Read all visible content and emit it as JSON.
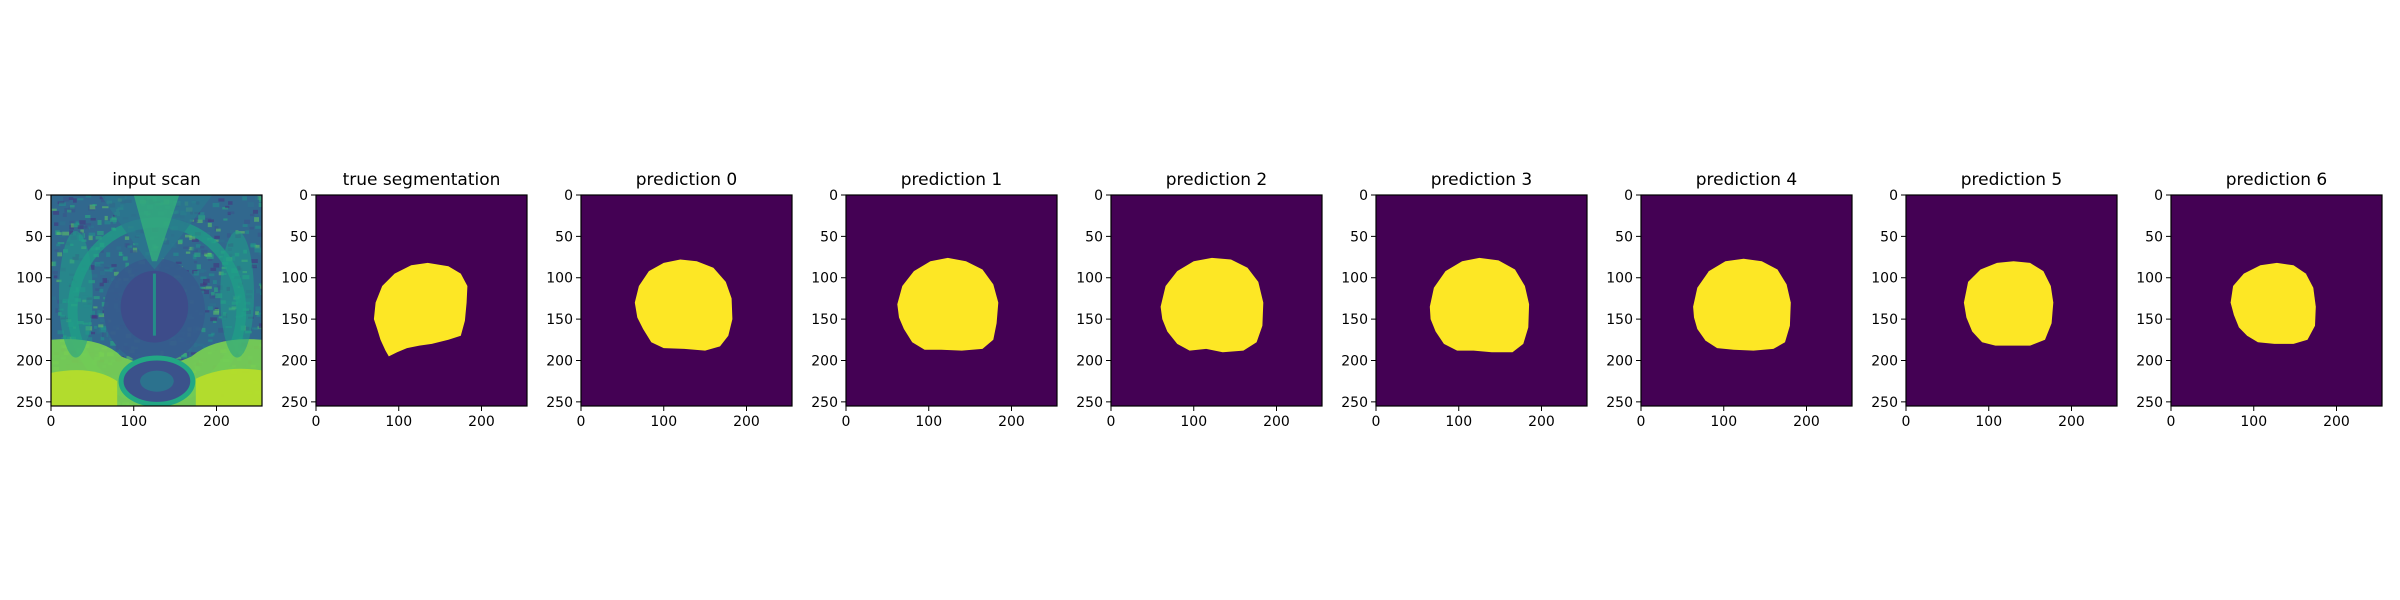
{
  "chart_data": {
    "type": "heatmap",
    "colormap": "viridis",
    "mask_colors": {
      "background": "#440154",
      "foreground": "#fde725"
    },
    "grid": false,
    "panels": [
      {
        "title": "input scan",
        "kind": "mri-scan",
        "xlim": [
          0,
          255
        ],
        "ylim": [
          255,
          0
        ],
        "xticks": [
          0,
          100,
          200
        ],
        "yticks": [
          0,
          50,
          100,
          150,
          200,
          250
        ]
      },
      {
        "title": "true segmentation",
        "kind": "mask",
        "xlim": [
          0,
          255
        ],
        "ylim": [
          255,
          0
        ],
        "xticks": [
          0,
          100,
          200
        ],
        "yticks": [
          0,
          50,
          100,
          150,
          200,
          250
        ],
        "mask_outline": [
          [
            70,
            150
          ],
          [
            72,
            130
          ],
          [
            80,
            110
          ],
          [
            95,
            95
          ],
          [
            115,
            85
          ],
          [
            135,
            82
          ],
          [
            160,
            86
          ],
          [
            175,
            95
          ],
          [
            183,
            110
          ],
          [
            182,
            130
          ],
          [
            180,
            152
          ],
          [
            175,
            170
          ],
          [
            160,
            175
          ],
          [
            140,
            180
          ],
          [
            125,
            182
          ],
          [
            110,
            185
          ],
          [
            98,
            190
          ],
          [
            88,
            195
          ],
          [
            84,
            188
          ],
          [
            78,
            175
          ],
          [
            74,
            162
          ]
        ]
      },
      {
        "title": "prediction 0",
        "kind": "mask",
        "xlim": [
          0,
          255
        ],
        "ylim": [
          255,
          0
        ],
        "xticks": [
          0,
          100,
          200
        ],
        "yticks": [
          0,
          50,
          100,
          150,
          200,
          250
        ],
        "mask_outline": [
          [
            65,
            130
          ],
          [
            70,
            110
          ],
          [
            82,
            92
          ],
          [
            100,
            82
          ],
          [
            120,
            78
          ],
          [
            140,
            80
          ],
          [
            160,
            88
          ],
          [
            175,
            105
          ],
          [
            182,
            125
          ],
          [
            183,
            150
          ],
          [
            178,
            170
          ],
          [
            168,
            183
          ],
          [
            150,
            188
          ],
          [
            125,
            186
          ],
          [
            100,
            185
          ],
          [
            85,
            178
          ],
          [
            75,
            162
          ],
          [
            68,
            148
          ]
        ]
      },
      {
        "title": "prediction 1",
        "kind": "mask",
        "xlim": [
          0,
          255
        ],
        "ylim": [
          255,
          0
        ],
        "xticks": [
          0,
          100,
          200
        ],
        "yticks": [
          0,
          50,
          100,
          150,
          200,
          250
        ],
        "mask_outline": [
          [
            62,
            132
          ],
          [
            68,
            110
          ],
          [
            82,
            92
          ],
          [
            102,
            80
          ],
          [
            123,
            76
          ],
          [
            145,
            80
          ],
          [
            165,
            90
          ],
          [
            178,
            108
          ],
          [
            184,
            130
          ],
          [
            182,
            155
          ],
          [
            178,
            175
          ],
          [
            165,
            186
          ],
          [
            140,
            188
          ],
          [
            115,
            187
          ],
          [
            95,
            187
          ],
          [
            80,
            178
          ],
          [
            70,
            162
          ],
          [
            64,
            148
          ]
        ]
      },
      {
        "title": "prediction 2",
        "kind": "mask",
        "xlim": [
          0,
          255
        ],
        "ylim": [
          255,
          0
        ],
        "xticks": [
          0,
          100,
          200
        ],
        "yticks": [
          0,
          50,
          100,
          150,
          200,
          250
        ],
        "mask_outline": [
          [
            60,
            135
          ],
          [
            66,
            110
          ],
          [
            80,
            92
          ],
          [
            100,
            80
          ],
          [
            122,
            76
          ],
          [
            145,
            78
          ],
          [
            165,
            88
          ],
          [
            178,
            105
          ],
          [
            184,
            130
          ],
          [
            183,
            158
          ],
          [
            176,
            178
          ],
          [
            160,
            188
          ],
          [
            135,
            190
          ],
          [
            115,
            186
          ],
          [
            95,
            188
          ],
          [
            80,
            180
          ],
          [
            68,
            165
          ],
          [
            62,
            150
          ]
        ]
      },
      {
        "title": "prediction 3",
        "kind": "mask",
        "xlim": [
          0,
          255
        ],
        "ylim": [
          255,
          0
        ],
        "xticks": [
          0,
          100,
          200
        ],
        "yticks": [
          0,
          50,
          100,
          150,
          200,
          250
        ],
        "mask_outline": [
          [
            65,
            135
          ],
          [
            70,
            112
          ],
          [
            84,
            92
          ],
          [
            104,
            80
          ],
          [
            125,
            76
          ],
          [
            148,
            79
          ],
          [
            168,
            90
          ],
          [
            180,
            110
          ],
          [
            185,
            132
          ],
          [
            184,
            160
          ],
          [
            178,
            180
          ],
          [
            165,
            190
          ],
          [
            140,
            190
          ],
          [
            118,
            188
          ],
          [
            98,
            188
          ],
          [
            82,
            180
          ],
          [
            72,
            165
          ],
          [
            66,
            150
          ]
        ]
      },
      {
        "title": "prediction 4",
        "kind": "mask",
        "xlim": [
          0,
          255
        ],
        "ylim": [
          255,
          0
        ],
        "xticks": [
          0,
          100,
          200
        ],
        "yticks": [
          0,
          50,
          100,
          150,
          200,
          250
        ],
        "mask_outline": [
          [
            63,
            135
          ],
          [
            68,
            112
          ],
          [
            82,
            92
          ],
          [
            102,
            80
          ],
          [
            124,
            77
          ],
          [
            146,
            80
          ],
          [
            165,
            90
          ],
          [
            176,
            108
          ],
          [
            181,
            130
          ],
          [
            180,
            158
          ],
          [
            174,
            178
          ],
          [
            160,
            186
          ],
          [
            136,
            188
          ],
          [
            112,
            187
          ],
          [
            92,
            185
          ],
          [
            78,
            176
          ],
          [
            68,
            162
          ],
          [
            64,
            148
          ]
        ]
      },
      {
        "title": "prediction 5",
        "kind": "mask",
        "xlim": [
          0,
          255
        ],
        "ylim": [
          255,
          0
        ],
        "xticks": [
          0,
          100,
          200
        ],
        "yticks": [
          0,
          50,
          100,
          150,
          200,
          250
        ],
        "mask_outline": [
          [
            70,
            130
          ],
          [
            75,
            105
          ],
          [
            90,
            90
          ],
          [
            110,
            82
          ],
          [
            130,
            80
          ],
          [
            150,
            82
          ],
          [
            166,
            92
          ],
          [
            175,
            110
          ],
          [
            178,
            130
          ],
          [
            176,
            155
          ],
          [
            168,
            175
          ],
          [
            150,
            182
          ],
          [
            128,
            182
          ],
          [
            108,
            182
          ],
          [
            92,
            178
          ],
          [
            80,
            165
          ],
          [
            73,
            148
          ]
        ]
      },
      {
        "title": "prediction 6",
        "kind": "mask",
        "xlim": [
          0,
          255
        ],
        "ylim": [
          255,
          0
        ],
        "xticks": [
          0,
          100,
          200
        ],
        "yticks": [
          0,
          50,
          100,
          150,
          200,
          250
        ],
        "mask_outline": [
          [
            72,
            130
          ],
          [
            75,
            110
          ],
          [
            88,
            95
          ],
          [
            108,
            85
          ],
          [
            128,
            82
          ],
          [
            148,
            85
          ],
          [
            163,
            95
          ],
          [
            172,
            112
          ],
          [
            175,
            135
          ],
          [
            174,
            158
          ],
          [
            165,
            175
          ],
          [
            148,
            180
          ],
          [
            125,
            180
          ],
          [
            105,
            178
          ],
          [
            92,
            170
          ],
          [
            82,
            160
          ],
          [
            76,
            145
          ]
        ]
      }
    ]
  }
}
